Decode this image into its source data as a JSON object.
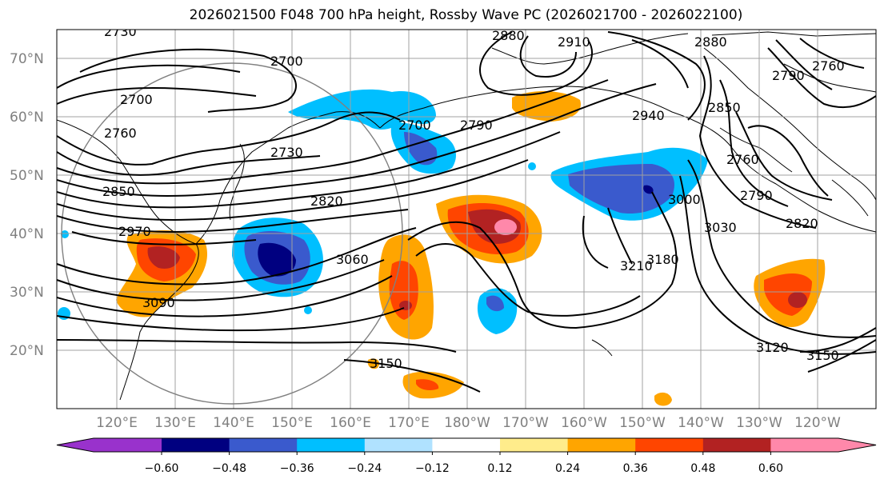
{
  "title": "2026021500 F048 700 hPa height, Rossby Wave PC (2026021700 - 2026022100)",
  "lat_labels": [
    "70°N",
    "60°N",
    "50°N",
    "40°N",
    "30°N",
    "20°N"
  ],
  "lon_labels": [
    "120°E",
    "130°E",
    "140°E",
    "150°E",
    "160°E",
    "170°E",
    "180°W",
    "170°W",
    "160°W",
    "150°W",
    "140°W",
    "130°W",
    "120°W"
  ],
  "contour_labels": [
    "2730",
    "2700",
    "2910",
    "2880",
    "2880",
    "2850",
    "2790",
    "2760",
    "2700",
    "2760",
    "2700",
    "2790",
    "2730",
    "2850",
    "2820",
    "2940",
    "3000",
    "2760",
    "2790",
    "2820",
    "3030",
    "2970",
    "3060",
    "3210",
    "3180",
    "3090",
    "3150",
    "3120",
    "3150"
  ],
  "colorbar": {
    "ticks": [
      "−0.60",
      "−0.48",
      "−0.36",
      "−0.24",
      "−0.12",
      "0.12",
      "0.24",
      "0.36",
      "0.48",
      "0.60"
    ],
    "colors": [
      "#9932cc",
      "#000080",
      "#3a5acd",
      "#00bfff",
      "#b0e2ff",
      "#ffffff",
      "#ffec8b",
      "#ffa500",
      "#ff4500",
      "#b22222",
      "#ff88aa"
    ]
  },
  "colors": {
    "land_outline": "#000000",
    "grid": "#a0a0a0",
    "circle": "#808080"
  }
}
